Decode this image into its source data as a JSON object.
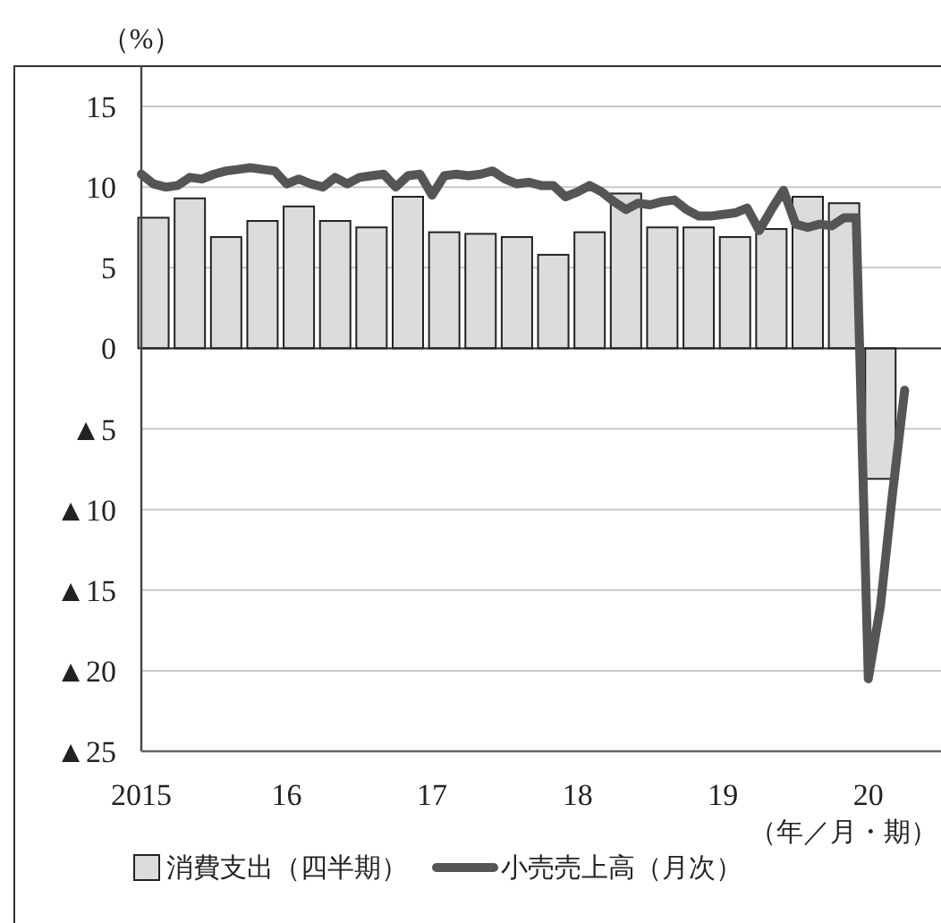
{
  "chart_data": {
    "type": "bar",
    "ylabel": "（%）",
    "xlabel": "（年／月・期）",
    "xlim": [
      "2015-01",
      "2020-07"
    ],
    "xticks": [
      {
        "value": "2015-01",
        "label": "2015"
      },
      {
        "value": "2016-01",
        "label": "16"
      },
      {
        "value": "2017-01",
        "label": "17"
      },
      {
        "value": "2018-01",
        "label": "18"
      },
      {
        "value": "2019-01",
        "label": "19"
      },
      {
        "value": "2020-01",
        "label": "20"
      }
    ],
    "ylim": [
      -25,
      17.5
    ],
    "yticks": [
      {
        "value": -25,
        "label": "▲25"
      },
      {
        "value": -20,
        "label": "▲20"
      },
      {
        "value": -15,
        "label": "▲15"
      },
      {
        "value": -10,
        "label": "▲10"
      },
      {
        "value": -5,
        "label": "▲5"
      },
      0,
      5,
      10,
      15
    ],
    "grid": "y",
    "legend": "bottom",
    "series": [
      {
        "name": "消費支出（四半期）",
        "color": "#dbdcdd",
        "x": [
          "2015-02",
          "2015-05",
          "2015-08",
          "2015-11",
          "2016-02",
          "2016-05",
          "2016-08",
          "2016-11",
          "2017-02",
          "2017-05",
          "2017-08",
          "2017-11",
          "2018-02",
          "2018-05",
          "2018-08",
          "2018-11",
          "2019-02",
          "2019-05",
          "2019-08",
          "2019-11",
          "2020-02"
        ],
        "values": [
          8.1,
          9.3,
          6.9,
          7.9,
          8.8,
          7.9,
          7.5,
          9.4,
          7.2,
          7.1,
          6.9,
          5.8,
          7.2,
          9.6,
          7.5,
          7.5,
          6.9,
          7.4,
          9.4,
          9.0,
          -8.1
        ]
      },
      {
        "name": "小売売上高（月次）",
        "type": "line",
        "color": "#555555",
        "x": [
          "2015-01",
          "2015-02",
          "2015-03",
          "2015-04",
          "2015-05",
          "2015-06",
          "2015-07",
          "2015-08",
          "2015-09",
          "2015-10",
          "2015-11",
          "2015-12",
          "2016-01",
          "2016-02",
          "2016-03",
          "2016-04",
          "2016-05",
          "2016-06",
          "2016-07",
          "2016-08",
          "2016-09",
          "2016-10",
          "2016-11",
          "2016-12",
          "2017-01",
          "2017-02",
          "2017-03",
          "2017-04",
          "2017-05",
          "2017-06",
          "2017-07",
          "2017-08",
          "2017-09",
          "2017-10",
          "2017-11",
          "2017-12",
          "2018-01",
          "2018-02",
          "2018-03",
          "2018-04",
          "2018-05",
          "2018-06",
          "2018-07",
          "2018-08",
          "2018-09",
          "2018-10",
          "2018-11",
          "2018-12",
          "2019-01",
          "2019-02",
          "2019-03",
          "2019-04",
          "2019-05",
          "2019-06",
          "2019-07",
          "2019-08",
          "2019-09",
          "2019-10",
          "2019-11",
          "2019-12",
          "2020-01",
          "2020-02",
          "2020-03",
          "2020-04"
        ],
        "values": [
          10.8,
          10.2,
          10.0,
          10.1,
          10.6,
          10.5,
          10.8,
          11.0,
          11.1,
          11.2,
          11.1,
          11.0,
          10.2,
          10.5,
          10.2,
          10.0,
          10.6,
          10.2,
          10.6,
          10.7,
          10.8,
          10.0,
          10.7,
          10.8,
          9.5,
          10.7,
          10.8,
          10.7,
          10.8,
          11.0,
          10.5,
          10.2,
          10.3,
          10.1,
          10.1,
          9.4,
          9.7,
          10.1,
          9.7,
          9.1,
          8.6,
          9.0,
          8.9,
          9.1,
          9.2,
          8.6,
          8.2,
          8.2,
          8.3,
          8.4,
          8.7,
          7.3,
          8.6,
          9.8,
          7.7,
          7.5,
          7.7,
          7.6,
          8.1,
          8.1,
          -20.5,
          -16,
          -9,
          -2.6
        ]
      }
    ]
  }
}
